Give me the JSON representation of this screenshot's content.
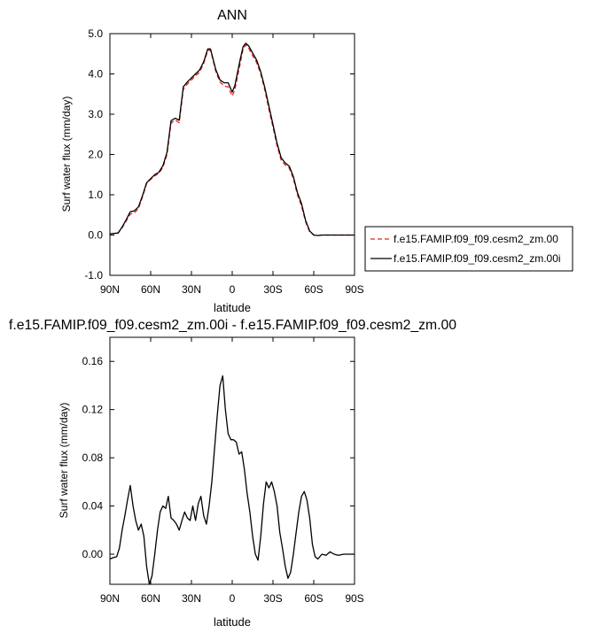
{
  "chart_data": [
    {
      "type": "line",
      "title": "ANN",
      "xlabel": "latitude",
      "ylabel": "Surf water flux (mm/day)",
      "xlim": [
        90,
        -90
      ],
      "ylim": [
        -1.0,
        5.0
      ],
      "xticks": [
        {
          "value": 90,
          "label": "90N"
        },
        {
          "value": 60,
          "label": "60N"
        },
        {
          "value": 30,
          "label": "30N"
        },
        {
          "value": 0,
          "label": "0"
        },
        {
          "value": -30,
          "label": "30S"
        },
        {
          "value": -60,
          "label": "60S"
        },
        {
          "value": -90,
          "label": "90S"
        }
      ],
      "yticks": [
        {
          "value": -1.0,
          "label": "-1.0"
        },
        {
          "value": 0.0,
          "label": "0.0"
        },
        {
          "value": 1.0,
          "label": "1.0"
        },
        {
          "value": 2.0,
          "label": "2.0"
        },
        {
          "value": 3.0,
          "label": "3.0"
        },
        {
          "value": 4.0,
          "label": "4.0"
        },
        {
          "value": 5.0,
          "label": "5.0"
        }
      ],
      "grid": false,
      "legend": "right",
      "series": [
        {
          "name": "f.e15.FAMIP.f09_f09.cesm2_zm.00",
          "color": "#e8211b",
          "dash": true,
          "points": [
            [
              90,
              0.03
            ],
            [
              87,
              0.04
            ],
            [
              84,
              0.05
            ],
            [
              81,
              0.18
            ],
            [
              78,
              0.35
            ],
            [
              75,
              0.52
            ],
            [
              72,
              0.55
            ],
            [
              69,
              0.66
            ],
            [
              66,
              0.95
            ],
            [
              63,
              1.28
            ],
            [
              60,
              1.38
            ],
            [
              57,
              1.47
            ],
            [
              54,
              1.53
            ],
            [
              51,
              1.68
            ],
            [
              48,
              2.0
            ],
            [
              45,
              2.78
            ],
            [
              42,
              2.86
            ],
            [
              39,
              2.79
            ],
            [
              36,
              3.62
            ],
            [
              33,
              3.75
            ],
            [
              30,
              3.85
            ],
            [
              27,
              3.96
            ],
            [
              24,
              4.04
            ],
            [
              21,
              4.26
            ],
            [
              18,
              4.58
            ],
            [
              16,
              4.59
            ],
            [
              14,
              4.33
            ],
            [
              12,
              4.05
            ],
            [
              9,
              3.8
            ],
            [
              6,
              3.7
            ],
            [
              3,
              3.68
            ],
            [
              0,
              3.45
            ],
            [
              -2,
              3.62
            ],
            [
              -4,
              3.95
            ],
            [
              -6,
              4.28
            ],
            [
              -8,
              4.62
            ],
            [
              -10,
              4.72
            ],
            [
              -12,
              4.65
            ],
            [
              -15,
              4.45
            ],
            [
              -18,
              4.28
            ],
            [
              -21,
              4.0
            ],
            [
              -24,
              3.6
            ],
            [
              -27,
              3.12
            ],
            [
              -30,
              2.68
            ],
            [
              -33,
              2.22
            ],
            [
              -36,
              1.86
            ],
            [
              -39,
              1.74
            ],
            [
              -42,
              1.66
            ],
            [
              -45,
              1.4
            ],
            [
              -48,
              1.0
            ],
            [
              -51,
              0.72
            ],
            [
              -54,
              0.33
            ],
            [
              -57,
              0.08
            ],
            [
              -60,
              0.0
            ],
            [
              -63,
              -0.01
            ],
            [
              -66,
              0.0
            ],
            [
              -72,
              0.0
            ],
            [
              -90,
              0.0
            ]
          ]
        },
        {
          "name": "f.e15.FAMIP.f09_f09.cesm2_zm.00i",
          "color": "#000000",
          "dash": false,
          "points": [
            [
              90,
              0.03
            ],
            [
              87,
              0.04
            ],
            [
              84,
              0.05
            ],
            [
              81,
              0.2
            ],
            [
              78,
              0.38
            ],
            [
              75,
              0.58
            ],
            [
              72,
              0.6
            ],
            [
              69,
              0.7
            ],
            [
              66,
              0.98
            ],
            [
              63,
              1.3
            ],
            [
              60,
              1.4
            ],
            [
              57,
              1.5
            ],
            [
              54,
              1.56
            ],
            [
              51,
              1.72
            ],
            [
              48,
              2.05
            ],
            [
              45,
              2.84
            ],
            [
              42,
              2.9
            ],
            [
              39,
              2.85
            ],
            [
              36,
              3.68
            ],
            [
              33,
              3.8
            ],
            [
              30,
              3.9
            ],
            [
              27,
              4.0
            ],
            [
              24,
              4.1
            ],
            [
              21,
              4.3
            ],
            [
              18,
              4.62
            ],
            [
              16,
              4.62
            ],
            [
              14,
              4.36
            ],
            [
              12,
              4.1
            ],
            [
              9,
              3.85
            ],
            [
              6,
              3.78
            ],
            [
              3,
              3.78
            ],
            [
              0,
              3.55
            ],
            [
              -2,
              3.72
            ],
            [
              -4,
              4.05
            ],
            [
              -6,
              4.38
            ],
            [
              -8,
              4.68
            ],
            [
              -10,
              4.76
            ],
            [
              -12,
              4.7
            ],
            [
              -15,
              4.52
            ],
            [
              -18,
              4.34
            ],
            [
              -21,
              4.05
            ],
            [
              -24,
              3.66
            ],
            [
              -27,
              3.2
            ],
            [
              -30,
              2.74
            ],
            [
              -33,
              2.28
            ],
            [
              -36,
              1.92
            ],
            [
              -39,
              1.79
            ],
            [
              -42,
              1.71
            ],
            [
              -45,
              1.45
            ],
            [
              -48,
              1.05
            ],
            [
              -51,
              0.78
            ],
            [
              -54,
              0.36
            ],
            [
              -57,
              0.1
            ],
            [
              -60,
              0.0
            ],
            [
              -63,
              -0.01
            ],
            [
              -66,
              0.0
            ],
            [
              -72,
              0.0
            ],
            [
              -90,
              0.0
            ]
          ]
        }
      ]
    },
    {
      "type": "line",
      "title": "f.e15.FAMIP.f09_f09.cesm2_zm.00i - f.e15.FAMIP.f09_f09.cesm2_zm.00",
      "xlabel": "latitude",
      "ylabel": "Surf water flux (mm/day)",
      "xlim": [
        90,
        -90
      ],
      "ylim": [
        -0.025,
        0.18
      ],
      "xticks": [
        {
          "value": 90,
          "label": "90N"
        },
        {
          "value": 60,
          "label": "60N"
        },
        {
          "value": 30,
          "label": "30N"
        },
        {
          "value": 0,
          "label": "0"
        },
        {
          "value": -30,
          "label": "30S"
        },
        {
          "value": -60,
          "label": "60S"
        },
        {
          "value": -90,
          "label": "90S"
        }
      ],
      "yticks": [
        {
          "value": 0.0,
          "label": "0.00"
        },
        {
          "value": 0.04,
          "label": "0.04"
        },
        {
          "value": 0.08,
          "label": "0.08"
        },
        {
          "value": 0.12,
          "label": "0.12"
        },
        {
          "value": 0.16,
          "label": "0.16"
        }
      ],
      "grid": false,
      "series": [
        {
          "color": "#000000",
          "dash": false,
          "points": [
            [
              90,
              -0.004
            ],
            [
              88,
              -0.003
            ],
            [
              85,
              -0.002
            ],
            [
              83,
              0.005
            ],
            [
              81,
              0.02
            ],
            [
              79,
              0.032
            ],
            [
              77,
              0.045
            ],
            [
              75,
              0.057
            ],
            [
              73,
              0.04
            ],
            [
              71,
              0.028
            ],
            [
              69,
              0.02
            ],
            [
              67,
              0.025
            ],
            [
              65,
              0.015
            ],
            [
              63,
              -0.01
            ],
            [
              61,
              -0.025
            ],
            [
              59,
              -0.018
            ],
            [
              57,
              0.0
            ],
            [
              55,
              0.02
            ],
            [
              53,
              0.035
            ],
            [
              51,
              0.04
            ],
            [
              49,
              0.038
            ],
            [
              47,
              0.048
            ],
            [
              45,
              0.03
            ],
            [
              43,
              0.028
            ],
            [
              41,
              0.025
            ],
            [
              39,
              0.02
            ],
            [
              37,
              0.028
            ],
            [
              35,
              0.035
            ],
            [
              33,
              0.03
            ],
            [
              31,
              0.028
            ],
            [
              29,
              0.04
            ],
            [
              27,
              0.028
            ],
            [
              25,
              0.042
            ],
            [
              23,
              0.048
            ],
            [
              21,
              0.032
            ],
            [
              19,
              0.025
            ],
            [
              17,
              0.04
            ],
            [
              15,
              0.06
            ],
            [
              13,
              0.088
            ],
            [
              11,
              0.115
            ],
            [
              9,
              0.14
            ],
            [
              7,
              0.148
            ],
            [
              5,
              0.12
            ],
            [
              3,
              0.1
            ],
            [
              1,
              0.095
            ],
            [
              -1,
              0.095
            ],
            [
              -3,
              0.093
            ],
            [
              -5,
              0.083
            ],
            [
              -7,
              0.085
            ],
            [
              -9,
              0.07
            ],
            [
              -11,
              0.05
            ],
            [
              -13,
              0.035
            ],
            [
              -15,
              0.015
            ],
            [
              -17,
              0.0
            ],
            [
              -19,
              -0.005
            ],
            [
              -21,
              0.015
            ],
            [
              -23,
              0.042
            ],
            [
              -25,
              0.06
            ],
            [
              -27,
              0.055
            ],
            [
              -29,
              0.06
            ],
            [
              -31,
              0.052
            ],
            [
              -33,
              0.04
            ],
            [
              -35,
              0.018
            ],
            [
              -37,
              0.005
            ],
            [
              -39,
              -0.01
            ],
            [
              -41,
              -0.02
            ],
            [
              -43,
              -0.015
            ],
            [
              -45,
              0.0
            ],
            [
              -47,
              0.018
            ],
            [
              -49,
              0.035
            ],
            [
              -51,
              0.048
            ],
            [
              -53,
              0.052
            ],
            [
              -55,
              0.045
            ],
            [
              -57,
              0.03
            ],
            [
              -59,
              0.008
            ],
            [
              -61,
              -0.002
            ],
            [
              -63,
              -0.004
            ],
            [
              -66,
              0.0
            ],
            [
              -69,
              -0.001
            ],
            [
              -72,
              0.002
            ],
            [
              -75,
              0.0
            ],
            [
              -78,
              -0.001
            ],
            [
              -82,
              0.0
            ],
            [
              -90,
              0.0
            ]
          ]
        }
      ]
    }
  ]
}
